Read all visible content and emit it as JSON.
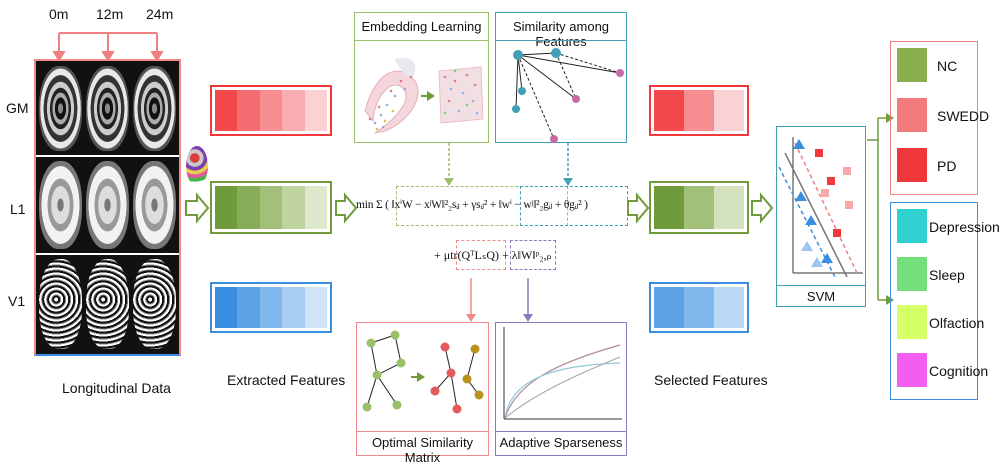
{
  "timepoints": [
    "0m",
    "12m",
    "24m"
  ],
  "modalities": [
    "GM",
    "L1",
    "V1"
  ],
  "labels": {
    "longitudinal": "Longitudinal Data",
    "extracted": "Extracted Features",
    "selected": "Selected Features",
    "embedding": "Embedding Learning",
    "similarity": "Similarity among Features",
    "optimal": "Optimal Similarity Matrix",
    "sparseness": "Adaptive Sparseness",
    "svm": "SVM"
  },
  "equation": {
    "line1": "min Σ ( ‖xⁱW − xʲW‖²₂sᵢⱼ + γsᵢⱼ² + ‖wⁱ − wʲ‖²₂gᵢⱼ + θgᵢⱼ² )",
    "line2": "+ μtr(QᵀLₛQ) + λ‖W‖ᵖ₂,ₚ"
  },
  "classes_top": [
    {
      "name": "NC",
      "color": "#8aad4e"
    },
    {
      "name": "SWEDD",
      "color": "#f27b7b"
    },
    {
      "name": "PD",
      "color": "#f0373b"
    }
  ],
  "classes_bottom": [
    {
      "name": "Depression",
      "color": "#2fd0d0"
    },
    {
      "name": "Sleep",
      "color": "#73e07c"
    },
    {
      "name": "Olfaction",
      "color": "#d4ff66"
    },
    {
      "name": "Cognition",
      "color": "#f25ef0"
    }
  ],
  "colors": {
    "red": "#f0383d",
    "green": "#6f9b3b",
    "blue": "#3a8ee0",
    "teal": "#41a0b7",
    "purple": "#8a7bbd",
    "pink": "#f08a8a"
  },
  "icons": [
    "arrow-right-icon",
    "brain-atlas-icon"
  ]
}
